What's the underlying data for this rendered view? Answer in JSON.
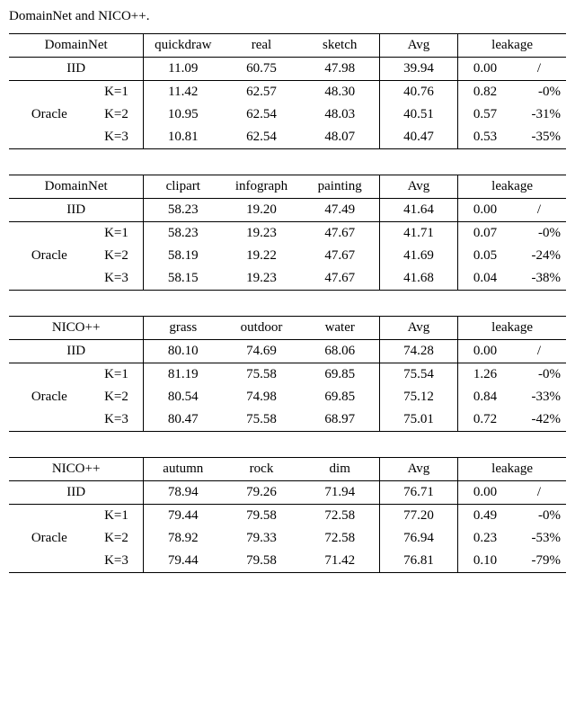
{
  "caption": "DomainNet and NICO++.",
  "tables": [
    {
      "title": "DomainNet",
      "cols": [
        "quickdraw",
        "real",
        "sketch"
      ],
      "iid": {
        "v": [
          "11.09",
          "60.75",
          "47.98"
        ],
        "avg": "39.94",
        "leak": [
          "0.00",
          "/"
        ]
      },
      "oracle": [
        {
          "k": "K=1",
          "v": [
            "11.42",
            "62.57",
            "48.30"
          ],
          "avg": "40.76",
          "leak": [
            "0.82",
            "-0%"
          ]
        },
        {
          "k": "K=2",
          "v": [
            "10.95",
            "62.54",
            "48.03"
          ],
          "avg": "40.51",
          "leak": [
            "0.57",
            "-31%"
          ]
        },
        {
          "k": "K=3",
          "v": [
            "10.81",
            "62.54",
            "48.07"
          ],
          "avg": "40.47",
          "leak": [
            "0.53",
            "-35%"
          ]
        }
      ]
    },
    {
      "title": "DomainNet",
      "cols": [
        "clipart",
        "infograph",
        "painting"
      ],
      "iid": {
        "v": [
          "58.23",
          "19.20",
          "47.49"
        ],
        "avg": "41.64",
        "leak": [
          "0.00",
          "/"
        ]
      },
      "oracle": [
        {
          "k": "K=1",
          "v": [
            "58.23",
            "19.23",
            "47.67"
          ],
          "avg": "41.71",
          "leak": [
            "0.07",
            "-0%"
          ]
        },
        {
          "k": "K=2",
          "v": [
            "58.19",
            "19.22",
            "47.67"
          ],
          "avg": "41.69",
          "leak": [
            "0.05",
            "-24%"
          ]
        },
        {
          "k": "K=3",
          "v": [
            "58.15",
            "19.23",
            "47.67"
          ],
          "avg": "41.68",
          "leak": [
            "0.04",
            "-38%"
          ]
        }
      ]
    },
    {
      "title": "NICO++",
      "cols": [
        "grass",
        "outdoor",
        "water"
      ],
      "iid": {
        "v": [
          "80.10",
          "74.69",
          "68.06"
        ],
        "avg": "74.28",
        "leak": [
          "0.00",
          "/"
        ]
      },
      "oracle": [
        {
          "k": "K=1",
          "v": [
            "81.19",
            "75.58",
            "69.85"
          ],
          "avg": "75.54",
          "leak": [
            "1.26",
            "-0%"
          ]
        },
        {
          "k": "K=2",
          "v": [
            "80.54",
            "74.98",
            "69.85"
          ],
          "avg": "75.12",
          "leak": [
            "0.84",
            "-33%"
          ]
        },
        {
          "k": "K=3",
          "v": [
            "80.47",
            "75.58",
            "68.97"
          ],
          "avg": "75.01",
          "leak": [
            "0.72",
            "-42%"
          ]
        }
      ]
    },
    {
      "title": "NICO++",
      "cols": [
        "autumn",
        "rock",
        "dim"
      ],
      "iid": {
        "v": [
          "78.94",
          "79.26",
          "71.94"
        ],
        "avg": "76.71",
        "leak": [
          "0.00",
          "/"
        ]
      },
      "oracle": [
        {
          "k": "K=1",
          "v": [
            "79.44",
            "79.58",
            "72.58"
          ],
          "avg": "77.20",
          "leak": [
            "0.49",
            "-0%"
          ]
        },
        {
          "k": "K=2",
          "v": [
            "78.92",
            "79.33",
            "72.58"
          ],
          "avg": "76.94",
          "leak": [
            "0.23",
            "-53%"
          ]
        },
        {
          "k": "K=3",
          "v": [
            "79.44",
            "79.58",
            "71.42"
          ],
          "avg": "76.81",
          "leak": [
            "0.10",
            "-79%"
          ]
        }
      ]
    }
  ],
  "labels": {
    "avg": "Avg",
    "leakage": "leakage",
    "iid": "IID",
    "oracle": "Oracle"
  }
}
